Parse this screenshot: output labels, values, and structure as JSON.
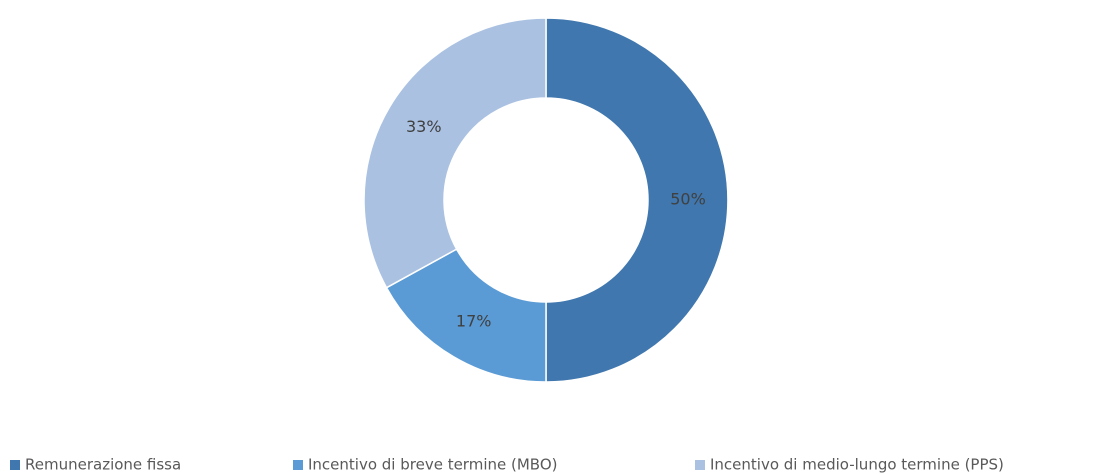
{
  "chart_data": {
    "type": "donut",
    "categories": [
      "Remunerazione fissa",
      "Incentivo di breve termine (MBO)",
      "Incentivo di medio-lungo termine (PPS)"
    ],
    "values": [
      50,
      17,
      33
    ],
    "value_labels": [
      "50%",
      "17%",
      "33%"
    ],
    "colors": [
      "#3f77ae",
      "#5b9bd5",
      "#aac1e2"
    ],
    "legend": "bottom"
  }
}
